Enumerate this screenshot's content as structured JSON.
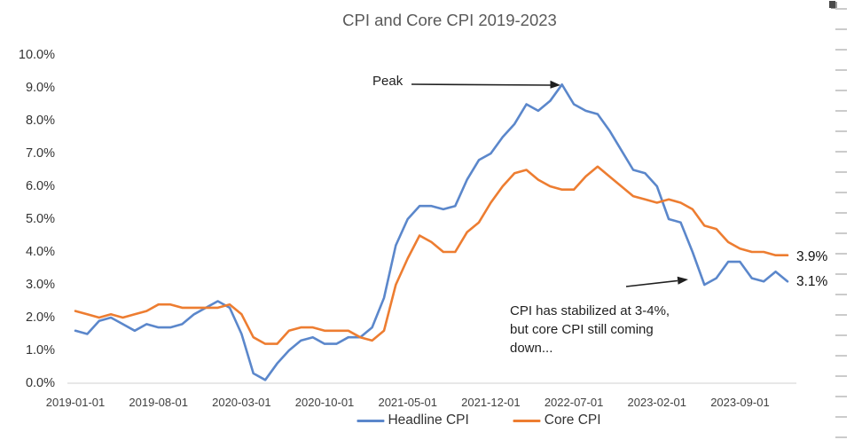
{
  "chart_data": {
    "type": "line",
    "title": "CPI and Core CPI 2019-2023",
    "xlabel": "",
    "ylabel": "",
    "ylim": [
      0,
      10
    ],
    "grid": "none",
    "x_start": "2019-01",
    "x_frequency": "monthly",
    "y_tick_labels": [
      "0.0%",
      "1.0%",
      "2.0%",
      "3.0%",
      "4.0%",
      "5.0%",
      "6.0%",
      "7.0%",
      "8.0%",
      "9.0%",
      "10.0%"
    ],
    "x_tick_labels": [
      "2019-01-01",
      "2019-08-01",
      "2020-03-01",
      "2020-10-01",
      "2021-05-01",
      "2021-12-01",
      "2022-07-01",
      "2023-02-01",
      "2023-09-01"
    ],
    "x_tick_months": [
      0,
      7,
      14,
      21,
      28,
      35,
      42,
      49,
      56
    ],
    "series": [
      {
        "name": "Headline CPI",
        "color": "#5B87CB",
        "values": [
          1.6,
          1.5,
          1.9,
          2.0,
          1.8,
          1.6,
          1.8,
          1.7,
          1.7,
          1.8,
          2.1,
          2.3,
          2.5,
          2.3,
          1.5,
          0.3,
          0.1,
          0.6,
          1.0,
          1.3,
          1.4,
          1.2,
          1.2,
          1.4,
          1.4,
          1.7,
          2.6,
          4.2,
          5.0,
          5.4,
          5.4,
          5.3,
          5.4,
          6.2,
          6.8,
          7.0,
          7.5,
          7.9,
          8.5,
          8.3,
          8.6,
          9.1,
          8.5,
          8.3,
          8.2,
          7.7,
          7.1,
          6.5,
          6.4,
          6.0,
          5.0,
          4.9,
          4.0,
          3.0,
          3.2,
          3.7,
          3.7,
          3.2,
          3.1,
          3.4,
          3.1
        ]
      },
      {
        "name": "Core CPI",
        "color": "#ED7D31",
        "values": [
          2.2,
          2.1,
          2.0,
          2.1,
          2.0,
          2.1,
          2.2,
          2.4,
          2.4,
          2.3,
          2.3,
          2.3,
          2.3,
          2.4,
          2.1,
          1.4,
          1.2,
          1.2,
          1.6,
          1.7,
          1.7,
          1.6,
          1.6,
          1.6,
          1.4,
          1.3,
          1.6,
          3.0,
          3.8,
          4.5,
          4.3,
          4.0,
          4.0,
          4.6,
          4.9,
          5.5,
          6.0,
          6.4,
          6.5,
          6.2,
          6.0,
          5.9,
          5.9,
          6.3,
          6.6,
          6.3,
          6.0,
          5.7,
          5.6,
          5.5,
          5.6,
          5.5,
          5.3,
          4.8,
          4.7,
          4.3,
          4.1,
          4.0,
          4.0,
          3.9,
          3.9
        ]
      }
    ],
    "end_labels": [
      {
        "series": "Core CPI",
        "text": "3.9%"
      },
      {
        "series": "Headline CPI",
        "text": "3.1%"
      }
    ],
    "annotations": {
      "peak": {
        "text": "Peak"
      },
      "note": {
        "lines": [
          "CPI has stabilized at 3-4%,",
          "but core CPI still coming",
          "down..."
        ]
      }
    },
    "legend": {
      "position": "bottom",
      "items": [
        "Headline CPI",
        "Core CPI"
      ]
    }
  }
}
